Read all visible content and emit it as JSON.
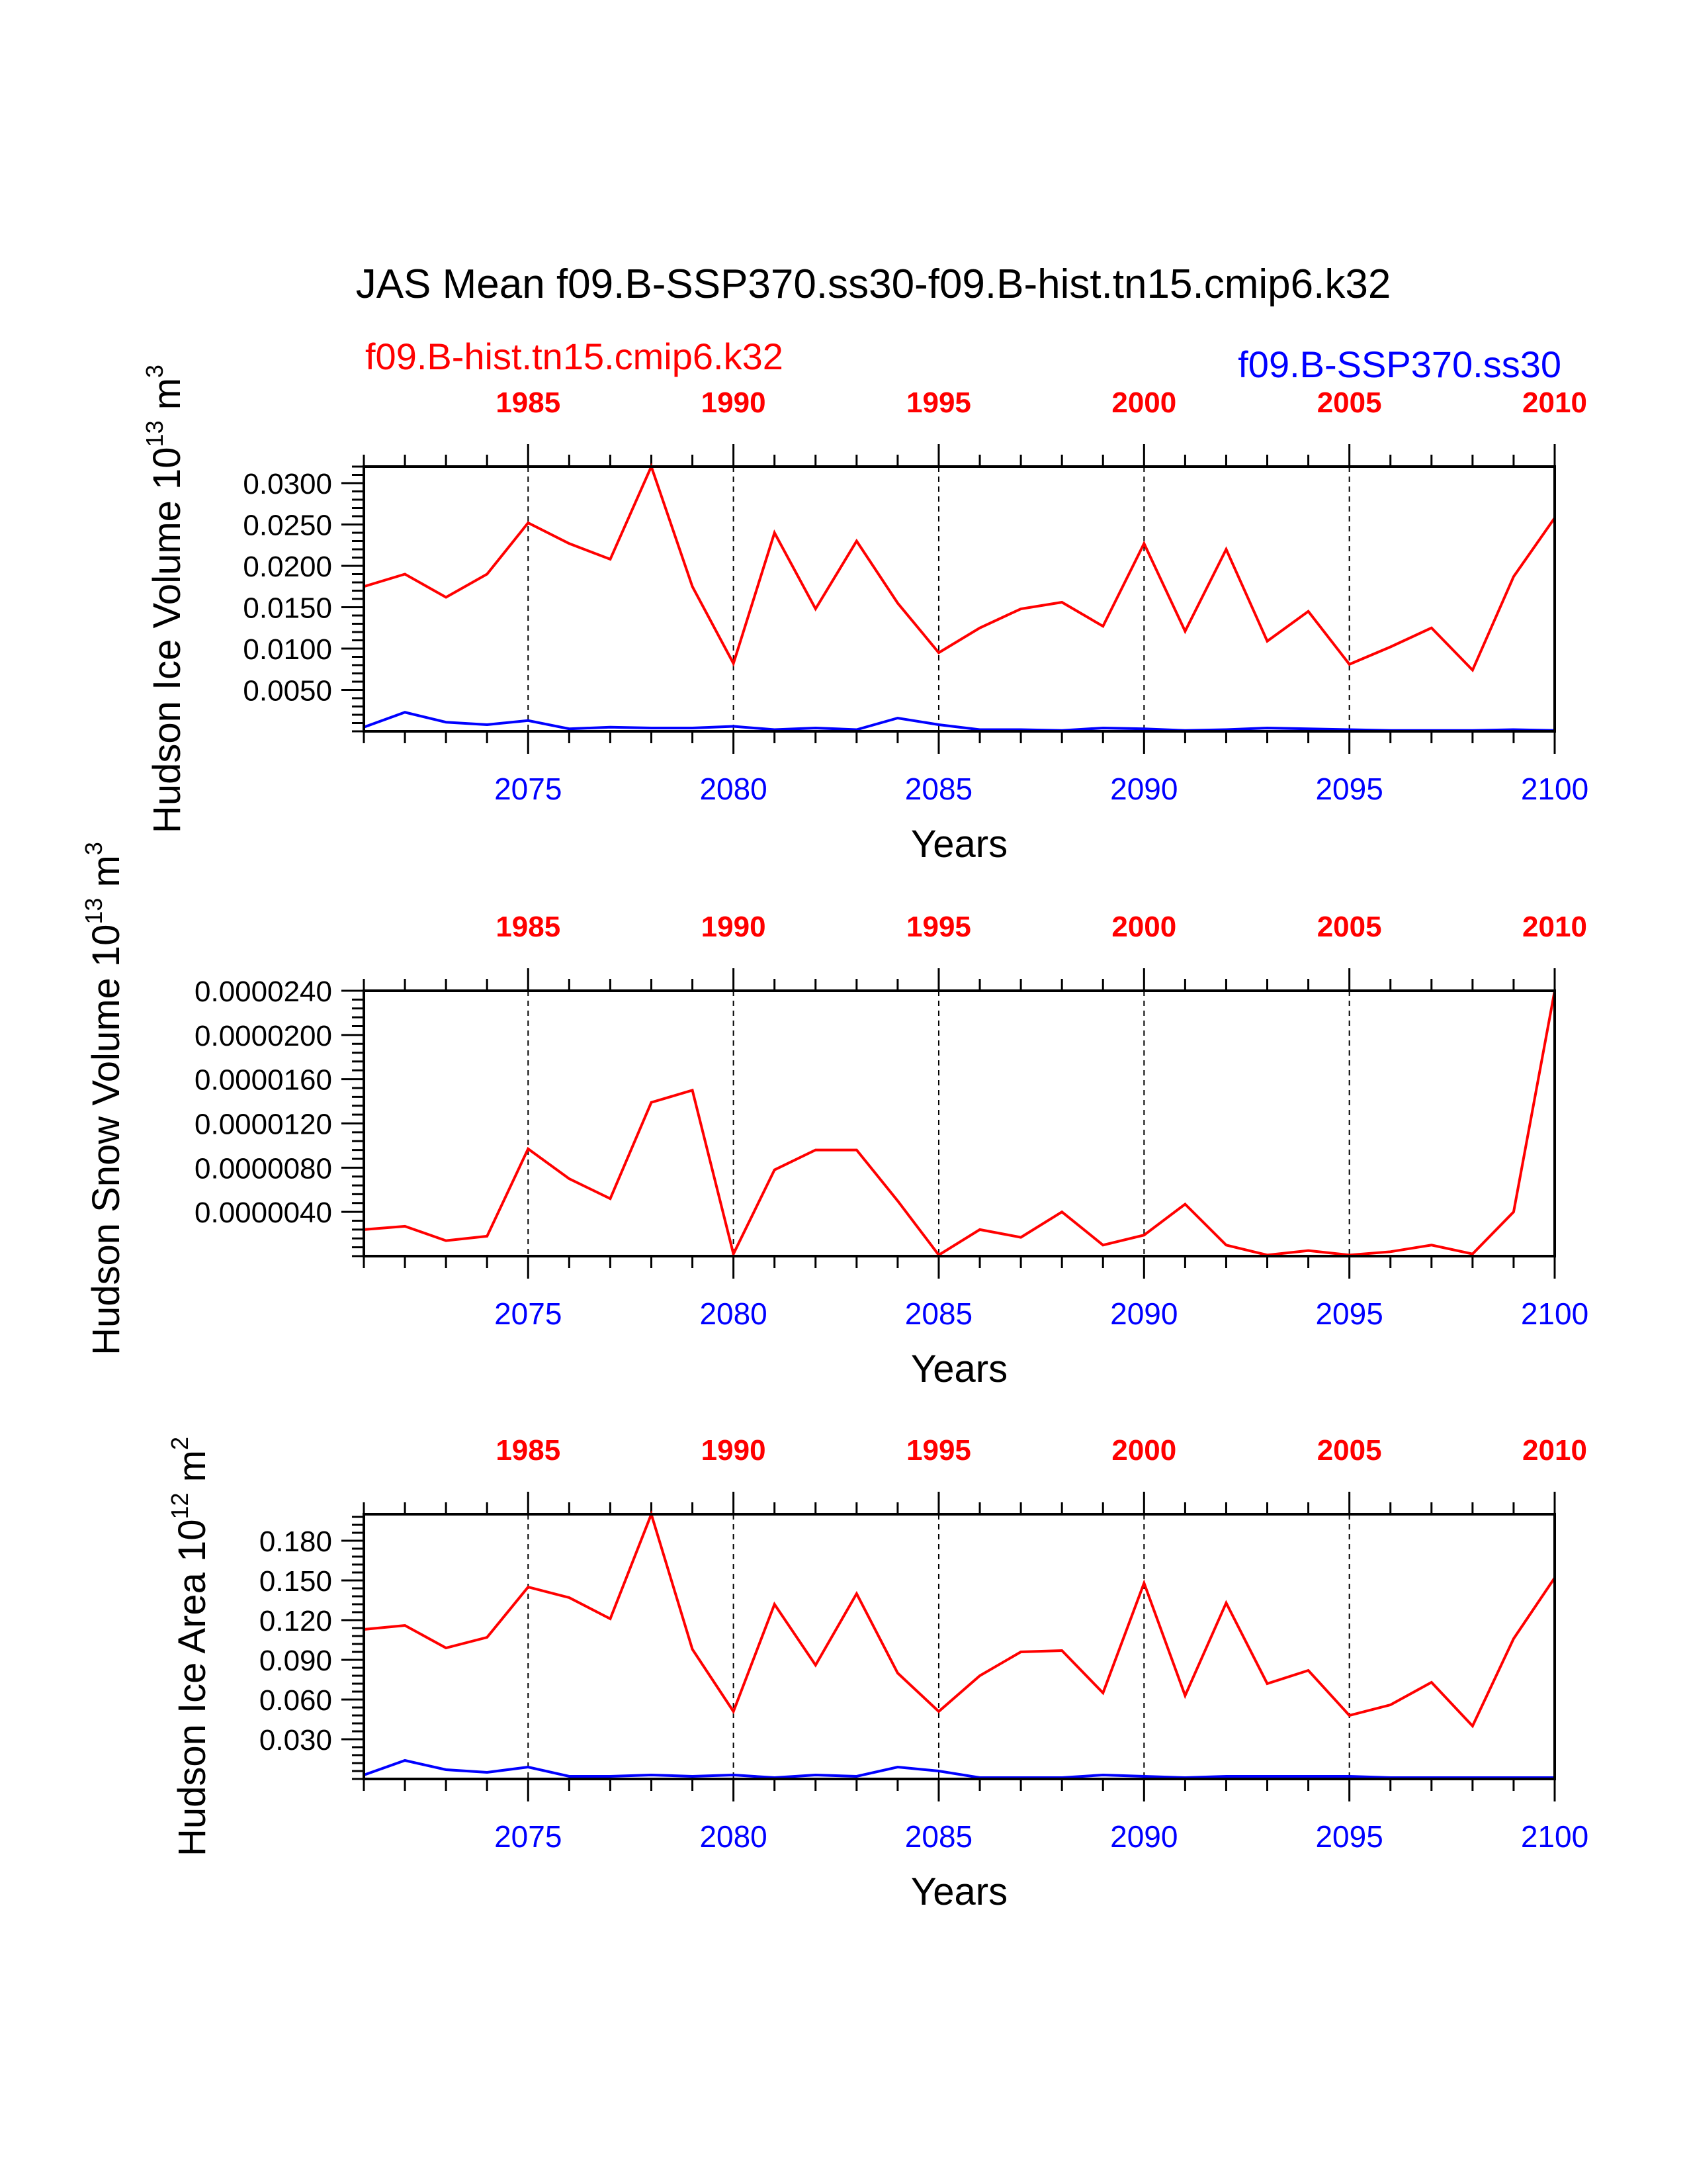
{
  "title": "JAS Mean f09.B-SSP370.ss30-f09.B-hist.tn15.cmip6.k32",
  "legend": {
    "hist_label": "f09.B-hist.tn15.cmip6.k32",
    "ssp_label": "f09.B-SSP370.ss30"
  },
  "colors": {
    "hist": "#ff0000",
    "ssp": "#0000ff",
    "axis": "#000000"
  },
  "chart_data": [
    {
      "type": "line",
      "title": "",
      "ylabel_main": "Hudson Ice Volume 10",
      "ylabel_exp": "13",
      "ylabel_unit": " m",
      "ylabel_unit_exp": "3",
      "xlabel": "Years",
      "x_bottom": {
        "range": [
          2071,
          2100
        ],
        "ticks": [
          2075,
          2080,
          2085,
          2090,
          2095,
          2100
        ],
        "tick_labels": [
          "2075",
          "2080",
          "2085",
          "2090",
          "2095",
          "2100"
        ]
      },
      "x_top": {
        "range": [
          1981,
          2010
        ],
        "ticks": [
          1985,
          1990,
          1995,
          2000,
          2005,
          2010
        ],
        "tick_labels": [
          "1985",
          "1990",
          "1995",
          "2000",
          "2005",
          "2010"
        ]
      },
      "vlines_x_bottom": [
        2075,
        2080,
        2085,
        2090,
        2095
      ],
      "ylim": [
        0.0,
        0.032
      ],
      "y_ticks": [
        0.005,
        0.01,
        0.015,
        0.02,
        0.025,
        0.03
      ],
      "y_tick_labels": [
        "0.0050",
        "0.0100",
        "0.0150",
        "0.0200",
        "0.0250",
        "0.0300"
      ],
      "series": [
        {
          "name": "f09.B-hist.tn15.cmip6.k32",
          "color": "#ff0000",
          "x": [
            2071,
            2072,
            2073,
            2074,
            2075,
            2076,
            2077,
            2078,
            2079,
            2080,
            2081,
            2082,
            2083,
            2084,
            2085,
            2086,
            2087,
            2088,
            2089,
            2090,
            2091,
            2092,
            2093,
            2094,
            2095,
            2096,
            2097,
            2098,
            2099,
            2100
          ],
          "values": [
            0.0175,
            0.019,
            0.0162,
            0.019,
            0.0252,
            0.0227,
            0.0208,
            0.032,
            0.0175,
            0.0082,
            0.024,
            0.0148,
            0.023,
            0.0155,
            0.0095,
            0.0125,
            0.0148,
            0.0156,
            0.0127,
            0.0227,
            0.0121,
            0.022,
            0.0109,
            0.0145,
            0.0081,
            0.0102,
            0.0125,
            0.0074,
            0.0187,
            0.0258
          ]
        },
        {
          "name": "f09.B-SSP370.ss30",
          "color": "#0000ff",
          "x": [
            2071,
            2072,
            2073,
            2074,
            2075,
            2076,
            2077,
            2078,
            2079,
            2080,
            2081,
            2082,
            2083,
            2084,
            2085,
            2086,
            2087,
            2088,
            2089,
            2090,
            2091,
            2092,
            2093,
            2094,
            2095,
            2096,
            2097,
            2098,
            2099,
            2100
          ],
          "values": [
            0.0005,
            0.0023,
            0.0011,
            0.0008,
            0.0013,
            0.0003,
            0.0005,
            0.0004,
            0.0004,
            0.0006,
            0.0002,
            0.0004,
            0.0002,
            0.0016,
            0.0008,
            0.0002,
            0.0002,
            0.0001,
            0.0004,
            0.0003,
            0.0001,
            0.0002,
            0.0004,
            0.0003,
            0.0002,
            0.0001,
            0.0001,
            0.0001,
            0.0002,
            0.0001
          ]
        }
      ]
    },
    {
      "type": "line",
      "title": "",
      "ylabel_main": "Hudson Snow Volume 10",
      "ylabel_exp": "13",
      "ylabel_unit": " m",
      "ylabel_unit_exp": "3",
      "xlabel": "Years",
      "x_bottom": {
        "range": [
          2071,
          2100
        ],
        "ticks": [
          2075,
          2080,
          2085,
          2090,
          2095,
          2100
        ],
        "tick_labels": [
          "2075",
          "2080",
          "2085",
          "2090",
          "2095",
          "2100"
        ]
      },
      "x_top": {
        "range": [
          1981,
          2010
        ],
        "ticks": [
          1985,
          1990,
          1995,
          2000,
          2005,
          2010
        ],
        "tick_labels": [
          "1985",
          "1990",
          "1995",
          "2000",
          "2005",
          "2010"
        ]
      },
      "vlines_x_bottom": [
        2075,
        2080,
        2085,
        2090,
        2095
      ],
      "ylim": [
        0.0,
        2.4e-05
      ],
      "y_ticks": [
        4e-06,
        8e-06,
        1.2e-05,
        1.6e-05,
        2e-05,
        2.4e-05
      ],
      "y_tick_labels": [
        "0.0000040",
        "0.0000080",
        "0.0000120",
        "0.0000160",
        "0.0000200",
        "0.0000240"
      ],
      "series": [
        {
          "name": "f09.B-hist.tn15.cmip6.k32",
          "color": "#ff0000",
          "x": [
            2071,
            2072,
            2073,
            2074,
            2075,
            2076,
            2077,
            2078,
            2079,
            2080,
            2081,
            2082,
            2083,
            2084,
            2085,
            2086,
            2087,
            2088,
            2089,
            2090,
            2091,
            2092,
            2093,
            2094,
            2095,
            2096,
            2097,
            2098,
            2099,
            2100
          ],
          "values": [
            2.4e-06,
            2.7e-06,
            1.4e-06,
            1.8e-06,
            9.7e-06,
            7e-06,
            5.2e-06,
            1.39e-05,
            1.5e-05,
            2e-07,
            7.8e-06,
            9.6e-06,
            9.6e-06,
            5e-06,
            1e-07,
            2.4e-06,
            1.7e-06,
            4e-06,
            1e-06,
            1.9e-06,
            4.7e-06,
            1e-06,
            1e-07,
            5e-07,
            1e-07,
            4e-07,
            1e-06,
            2e-07,
            4e-06,
            2.4e-05
          ]
        }
      ]
    },
    {
      "type": "line",
      "title": "",
      "ylabel_main": "Hudson Ice Area 10",
      "ylabel_exp": "12",
      "ylabel_unit": " m",
      "ylabel_unit_exp": "2",
      "xlabel": "Years",
      "x_bottom": {
        "range": [
          2071,
          2100
        ],
        "ticks": [
          2075,
          2080,
          2085,
          2090,
          2095,
          2100
        ],
        "tick_labels": [
          "2075",
          "2080",
          "2085",
          "2090",
          "2095",
          "2100"
        ]
      },
      "x_top": {
        "range": [
          1981,
          2010
        ],
        "ticks": [
          1985,
          1990,
          1995,
          2000,
          2005,
          2010
        ],
        "tick_labels": [
          "1985",
          "1990",
          "1995",
          "2000",
          "2005",
          "2010"
        ]
      },
      "vlines_x_bottom": [
        2075,
        2080,
        2085,
        2090,
        2095
      ],
      "ylim": [
        0.0,
        0.2
      ],
      "y_ticks": [
        0.03,
        0.06,
        0.09,
        0.12,
        0.15,
        0.18
      ],
      "y_tick_labels": [
        "0.030",
        "0.060",
        "0.090",
        "0.120",
        "0.150",
        "0.180"
      ],
      "series": [
        {
          "name": "f09.B-hist.tn15.cmip6.k32",
          "color": "#ff0000",
          "x": [
            2071,
            2072,
            2073,
            2074,
            2075,
            2076,
            2077,
            2078,
            2079,
            2080,
            2081,
            2082,
            2083,
            2084,
            2085,
            2086,
            2087,
            2088,
            2089,
            2090,
            2091,
            2092,
            2093,
            2094,
            2095,
            2096,
            2097,
            2098,
            2099,
            2100
          ],
          "values": [
            0.113,
            0.116,
            0.099,
            0.107,
            0.145,
            0.137,
            0.121,
            0.2,
            0.098,
            0.051,
            0.132,
            0.086,
            0.14,
            0.08,
            0.051,
            0.078,
            0.096,
            0.097,
            0.065,
            0.148,
            0.063,
            0.133,
            0.072,
            0.082,
            0.048,
            0.056,
            0.073,
            0.04,
            0.106,
            0.152
          ]
        },
        {
          "name": "f09.B-SSP370.ss30",
          "color": "#0000ff",
          "x": [
            2071,
            2072,
            2073,
            2074,
            2075,
            2076,
            2077,
            2078,
            2079,
            2080,
            2081,
            2082,
            2083,
            2084,
            2085,
            2086,
            2087,
            2088,
            2089,
            2090,
            2091,
            2092,
            2093,
            2094,
            2095,
            2096,
            2097,
            2098,
            2099,
            2100
          ],
          "values": [
            0.003,
            0.014,
            0.007,
            0.005,
            0.009,
            0.002,
            0.002,
            0.003,
            0.002,
            0.003,
            0.001,
            0.003,
            0.002,
            0.009,
            0.006,
            0.001,
            0.001,
            0.001,
            0.003,
            0.002,
            0.001,
            0.002,
            0.002,
            0.002,
            0.002,
            0.001,
            0.001,
            0.001,
            0.001,
            0.001
          ]
        }
      ]
    }
  ]
}
